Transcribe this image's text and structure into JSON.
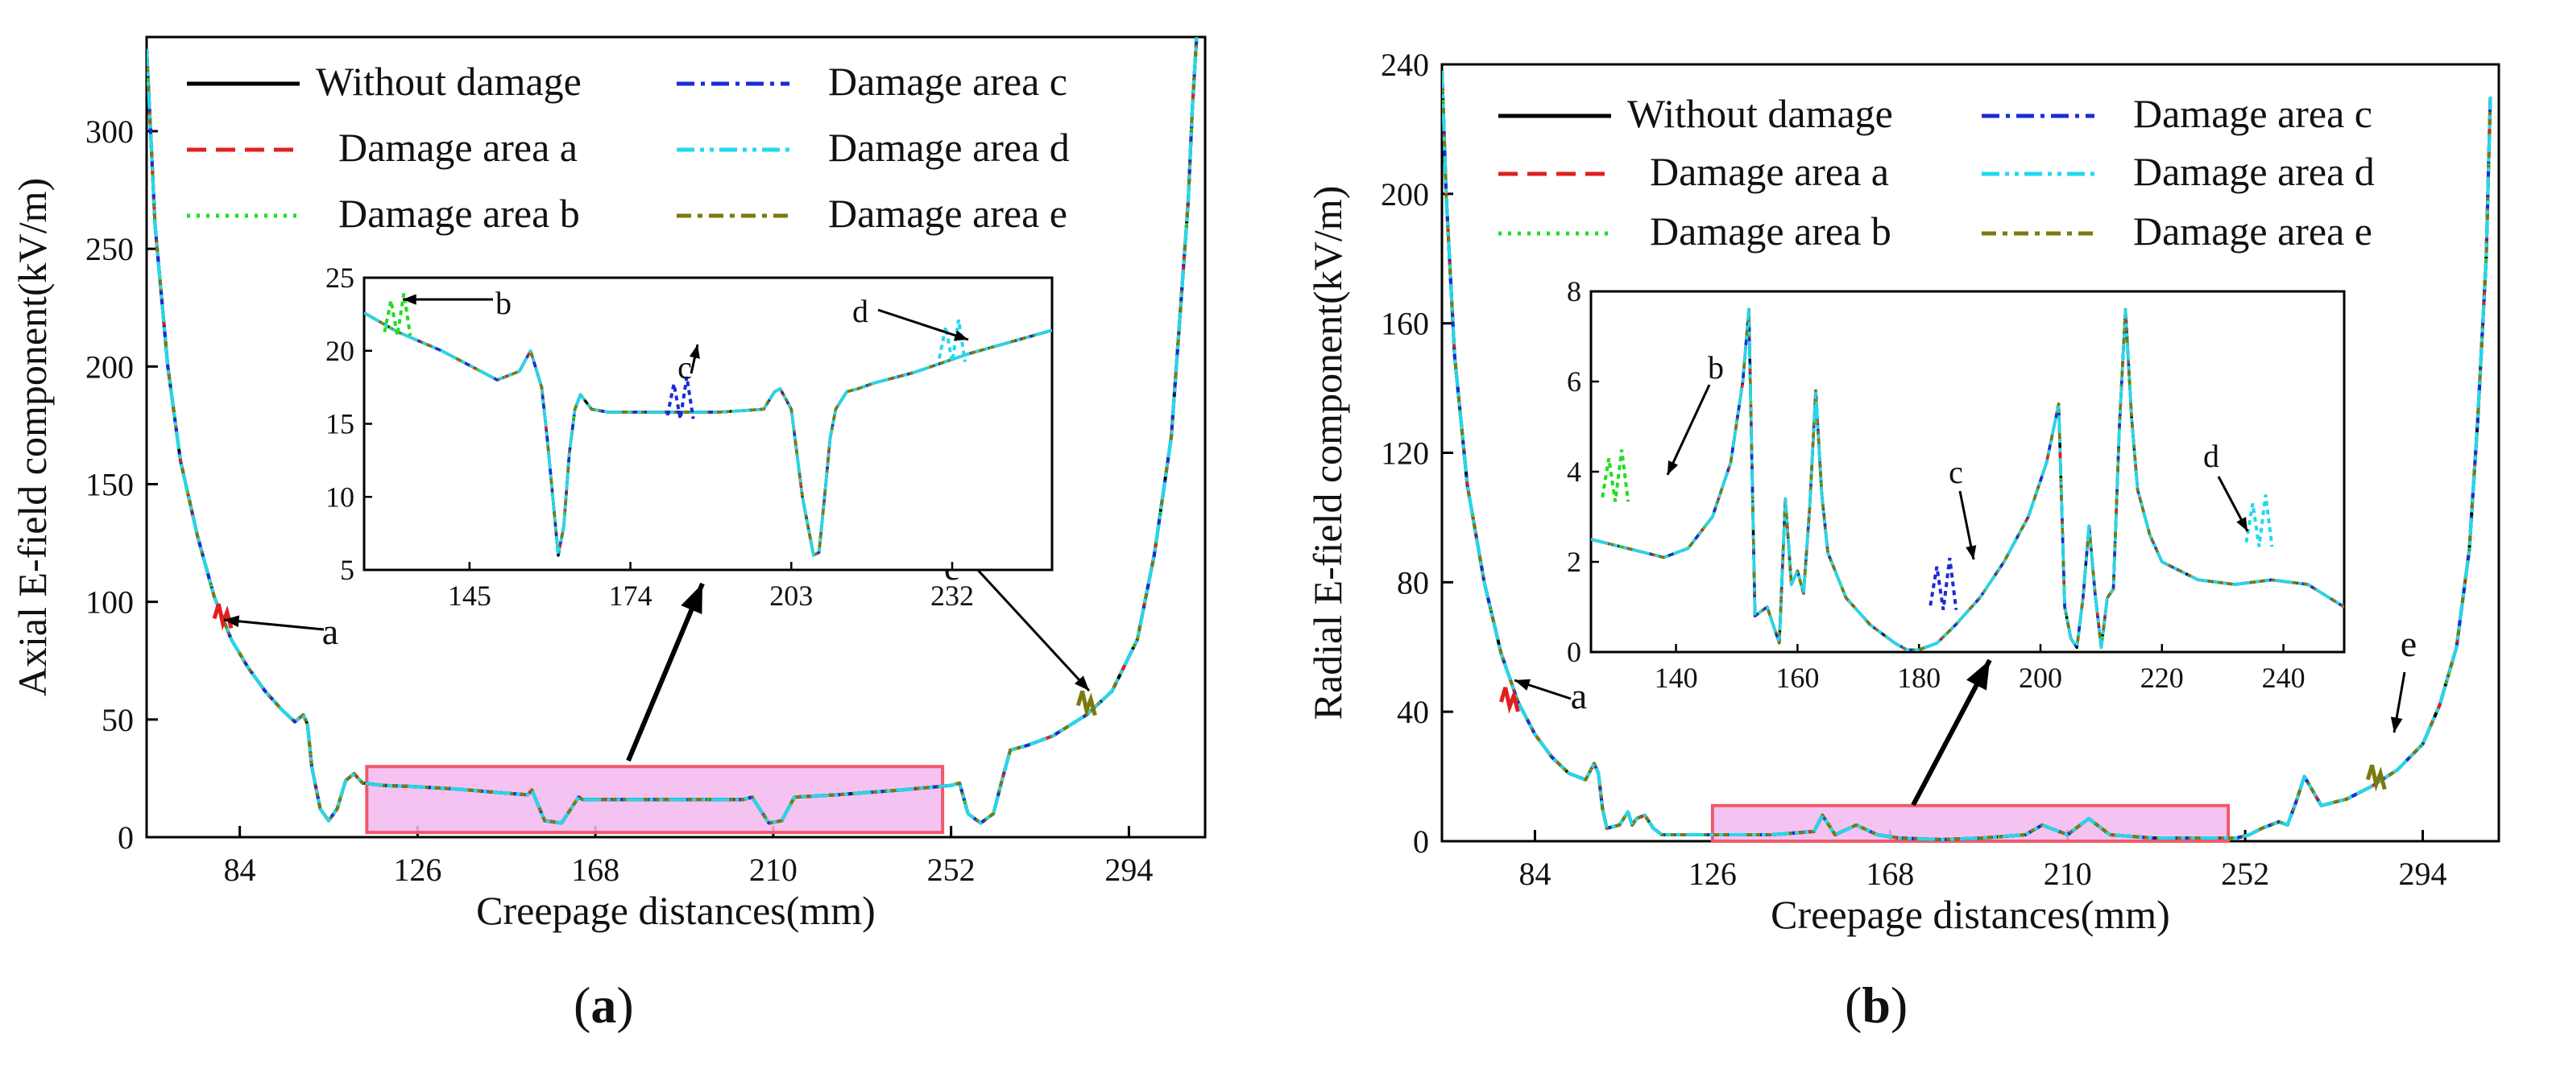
{
  "chart_data": [
    {
      "panel_label": "a",
      "type": "line",
      "xlabel": "Creepage distances(mm)",
      "ylabel": "Axial E-field component(kV/m)",
      "xlim": [
        62,
        312
      ],
      "ylim": [
        0,
        340
      ],
      "xticks": [
        84,
        126,
        168,
        210,
        252,
        294
      ],
      "yticks": [
        0,
        50,
        100,
        150,
        200,
        250,
        300
      ],
      "legend": [
        {
          "label": "Without damage",
          "color": "#000000",
          "dash": "solid"
        },
        {
          "label": "Damage area a",
          "color": "#e02020",
          "dash": "dash"
        },
        {
          "label": "Damage area b",
          "color": "#22dd22",
          "dash": "dot"
        },
        {
          "label": "Damage area c",
          "color": "#1a2bd6",
          "dash": "dashdot"
        },
        {
          "label": "Damage area d",
          "color": "#22d8ee",
          "dash": "dashdotdot"
        },
        {
          "label": "Damage area e",
          "color": "#7a7a10",
          "dash": "dashdot2"
        }
      ],
      "main_curve": {
        "x": [
          62,
          64,
          67,
          70,
          74,
          78,
          82,
          86,
          90,
          94,
          97,
          99,
          100,
          101,
          103,
          105,
          107,
          109,
          111,
          113,
          118,
          125,
          135,
          145,
          152,
          153,
          156,
          160,
          164,
          165,
          175,
          185,
          195,
          203,
          205,
          209,
          212,
          215,
          225,
          240,
          252,
          254,
          256,
          259,
          262,
          264,
          266,
          270,
          276,
          284,
          290,
          296,
          300,
          304,
          306,
          308,
          309,
          310
        ],
        "y": [
          335,
          260,
          200,
          160,
          128,
          102,
          84,
          72,
          62,
          54,
          49,
          52,
          48,
          30,
          12,
          7,
          12,
          24,
          27,
          23,
          22,
          21.5,
          20.5,
          19,
          18,
          20,
          7,
          6,
          17,
          16,
          16,
          16,
          16,
          16,
          17,
          6,
          7,
          17,
          18,
          20,
          22,
          23,
          10,
          6,
          10,
          24,
          37,
          39,
          43,
          52,
          62,
          84,
          120,
          170,
          220,
          270,
          310,
          340
        ]
      },
      "damage_annotations": [
        {
          "label": "a",
          "x": 80,
          "y": 97
        },
        {
          "label": "e",
          "x": 284,
          "y": 60
        }
      ],
      "highlight_region": {
        "x_range": [
          114,
          250
        ],
        "y_range": [
          2,
          30
        ]
      },
      "inset": {
        "xlim": [
          126,
          250
        ],
        "ylim": [
          5,
          25
        ],
        "xticks": [
          145,
          174,
          203,
          232
        ],
        "yticks": [
          5,
          10,
          15,
          20,
          25
        ],
        "main_curve": {
          "x": [
            126,
            132,
            140,
            150,
            154,
            156,
            158,
            159,
            160,
            161,
            162,
            163,
            164,
            165,
            167,
            170,
            174,
            180,
            190,
            198,
            200,
            201,
            203,
            205,
            206,
            207,
            208,
            209,
            210,
            211,
            213,
            215,
            218,
            225,
            235,
            250
          ],
          "y": [
            22.6,
            21.3,
            20,
            18,
            18.6,
            20,
            17.5,
            14,
            10,
            6,
            8,
            13,
            16,
            17,
            16,
            15.8,
            15.8,
            15.8,
            15.8,
            16,
            17.2,
            17.4,
            16,
            10,
            8,
            6,
            6.2,
            10,
            14,
            16,
            17.2,
            17.4,
            17.8,
            18.5,
            19.8,
            21.4
          ]
        },
        "annotations": [
          {
            "label": "b",
            "x": 132,
            "y": 23.2
          },
          {
            "label": "c",
            "x": 183,
            "y": 17.5
          },
          {
            "label": "d",
            "x": 232,
            "y": 21.4
          }
        ]
      }
    },
    {
      "panel_label": "b",
      "type": "line",
      "xlabel": "Creepage distances(mm)",
      "ylabel": "Radial E-field component(kV/m)",
      "xlim": [
        62,
        312
      ],
      "ylim": [
        0,
        240
      ],
      "xticks": [
        84,
        126,
        168,
        210,
        252,
        294
      ],
      "yticks": [
        0,
        40,
        80,
        120,
        160,
        200,
        240
      ],
      "legend": [
        {
          "label": "Without damage",
          "color": "#000000",
          "dash": "solid"
        },
        {
          "label": "Damage area a",
          "color": "#e02020",
          "dash": "dash"
        },
        {
          "label": "Damage area b",
          "color": "#22dd22",
          "dash": "dot"
        },
        {
          "label": "Damage area c",
          "color": "#1a2bd6",
          "dash": "dashdot"
        },
        {
          "label": "Damage area d",
          "color": "#22d8ee",
          "dash": "dashdotdot"
        },
        {
          "label": "Damage area e",
          "color": "#7a7a10",
          "dash": "dashdot2"
        }
      ],
      "main_curve": {
        "x": [
          62,
          63,
          65,
          68,
          72,
          76,
          80,
          84,
          88,
          92,
          96,
          98,
          99,
          100,
          101,
          104,
          106,
          107,
          108,
          110,
          112,
          114,
          120,
          126,
          140,
          150,
          152,
          155,
          160,
          165,
          170,
          180,
          190,
          200,
          204,
          210,
          215,
          220,
          230,
          240,
          250,
          253,
          256,
          260,
          262,
          264,
          266,
          270,
          276,
          282,
          288,
          294,
          298,
          302,
          305,
          307,
          309,
          310
        ],
        "y": [
          238,
          200,
          150,
          110,
          80,
          58,
          43,
          33,
          26,
          21,
          19,
          24,
          21,
          10,
          4,
          5,
          9,
          5,
          7,
          8,
          4,
          2,
          2,
          2,
          2,
          3,
          8,
          2,
          5,
          2,
          1,
          0.5,
          1,
          2,
          5,
          2,
          7,
          2,
          1,
          1,
          1,
          2,
          4,
          6,
          5,
          12,
          20,
          11,
          13,
          17,
          22,
          30,
          42,
          60,
          90,
          130,
          180,
          230
        ]
      },
      "damage_annotations": [
        {
          "label": "a",
          "x": 78,
          "y": 46
        },
        {
          "label": "e",
          "x": 283,
          "y": 22
        }
      ],
      "highlight_region": {
        "x_range": [
          126,
          248
        ],
        "y_range": [
          0,
          11
        ]
      },
      "inset": {
        "xlim": [
          126,
          250
        ],
        "ylim": [
          0,
          8
        ],
        "xticks": [
          140,
          160,
          180,
          200,
          220,
          240
        ],
        "yticks": [
          0,
          2,
          4,
          6,
          8
        ],
        "main_curve": {
          "x": [
            126,
            132,
            138,
            142,
            146,
            149,
            151,
            152,
            153,
            155,
            156,
            157,
            158,
            159,
            160,
            161,
            162,
            163,
            164,
            165,
            168,
            172,
            176,
            178,
            180,
            183,
            186,
            190,
            194,
            198,
            201,
            203,
            204,
            205,
            206,
            207,
            208,
            209,
            210,
            211,
            212,
            213,
            214,
            215,
            216,
            218,
            220,
            226,
            232,
            238,
            244,
            250
          ],
          "y": [
            2.5,
            2.3,
            2.1,
            2.3,
            3.0,
            4.2,
            6.0,
            7.6,
            0.8,
            1.0,
            0.6,
            0.2,
            3.4,
            1.5,
            1.8,
            1.3,
            3.2,
            5.8,
            3.5,
            2.2,
            1.2,
            0.6,
            0.2,
            0.05,
            0.05,
            0.2,
            0.6,
            1.2,
            2.0,
            3.0,
            4.2,
            5.5,
            1.0,
            0.3,
            0.1,
            1.2,
            2.8,
            1.3,
            0.1,
            1.2,
            1.4,
            5.0,
            7.6,
            5.2,
            3.6,
            2.6,
            2.0,
            1.6,
            1.5,
            1.6,
            1.5,
            1.0
          ]
        },
        "annotations": [
          {
            "label": "b",
            "x": 130,
            "y": 4.2
          },
          {
            "label": "c",
            "x": 184,
            "y": 1.8
          },
          {
            "label": "d",
            "x": 236,
            "y": 3.2
          }
        ]
      }
    }
  ],
  "captions": {
    "a": {
      "open": "(",
      "letter": "a",
      "close": ")"
    },
    "b": {
      "open": "(",
      "letter": "b",
      "close": ")"
    }
  }
}
